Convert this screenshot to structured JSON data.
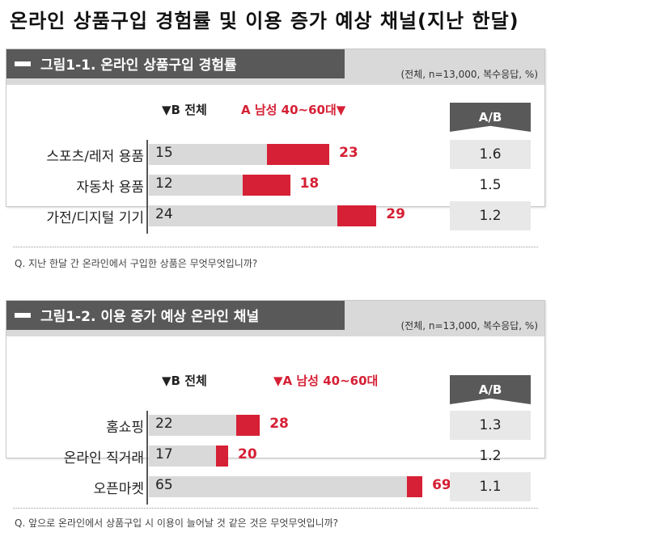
{
  "page_title": "온라인 상품구입 경험률 및 이용 증가 예상 채널(지난 한달)",
  "ab_header": "A/B",
  "chart_data": [
    {
      "type": "bar",
      "title": "그림1-1. 온라인 상품구입 경험률",
      "note": "(전체, n=13,000, 복수응답, %)",
      "legend_b": "▼B 전체",
      "legend_a": "A 남성 40~60대▼",
      "categories": [
        "스포츠/레저 용품",
        "자동차 용품",
        "가전/디지털 기기"
      ],
      "series": [
        {
          "name": "B 전체",
          "values": [
            15,
            12,
            24
          ]
        },
        {
          "name": "A 남성 40~60대",
          "values": [
            23,
            18,
            29
          ]
        }
      ],
      "ab_labels": [
        "1.6",
        "1.5",
        "1.2"
      ],
      "ab_values": [
        1.6,
        1.5,
        1.2
      ],
      "question": "Q. 지난 한달 간 온라인에서 구입한 상품은 무엇무엇입니까?",
      "colors": {
        "b": "#d9d9d9",
        "a": "#d62035"
      }
    },
    {
      "type": "bar",
      "title": "그림1-2. 이용 증가 예상 온라인 채널",
      "note": "(전체, n=13,000, 복수응답, %)",
      "legend_b": "▼B 전체",
      "legend_a": "▼A 남성 40~60대",
      "categories": [
        "홈쇼핑",
        "온라인 직거래",
        "오픈마켓"
      ],
      "series": [
        {
          "name": "B 전체",
          "values": [
            22,
            17,
            65
          ]
        },
        {
          "name": "A 남성 40~60대",
          "values": [
            28,
            20,
            69
          ]
        }
      ],
      "ab_labels": [
        "1.3",
        "1.2",
        "1.1"
      ],
      "ab_values": [
        1.3,
        1.2,
        1.1
      ],
      "question": "Q. 앞으로 온라인에서 상품구입 시 이용이 늘어날 것 같은 것은 무엇무엇입니까?",
      "colors": {
        "b": "#d9d9d9",
        "a": "#d62035"
      }
    }
  ]
}
